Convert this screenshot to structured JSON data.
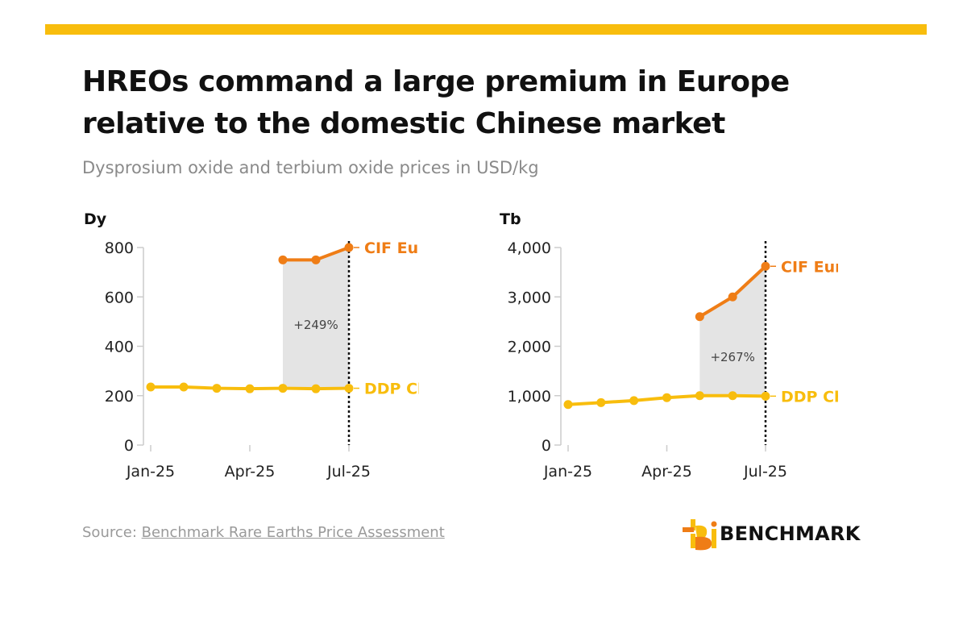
{
  "header": {
    "title_line1": "HREOs command a large premium in Europe",
    "title_line2": "relative to the domestic Chinese market",
    "subtitle": "Dysprosium oxide and terbium oxide prices in USD/kg"
  },
  "footer": {
    "source_prefix": "Source: ",
    "source_link": "Benchmark Rare Earths Price Assessment",
    "brand": "BENCHMARK"
  },
  "colors": {
    "accent_bar": "#f8bd0d",
    "cif_europe": "#ef7d16",
    "ddp_china": "#f8bd0d",
    "premium_fill": "#e4e4e4",
    "axis": "#cccccc",
    "muted_text": "#8a8a8a"
  },
  "chart_data": [
    {
      "type": "line",
      "title": "Dy",
      "x": [
        "Jan-25",
        "Feb-25",
        "Mar-25",
        "Apr-25",
        "May-25",
        "Jun-25",
        "Jul-25"
      ],
      "x_ticks": [
        "Jan-25",
        "Apr-25",
        "Jul-25"
      ],
      "ylim": [
        0,
        800
      ],
      "y_ticks": [
        "0",
        "200",
        "400",
        "600",
        "800"
      ],
      "y_tick_values": [
        0,
        200,
        400,
        600,
        800
      ],
      "series": [
        {
          "name": "CIF Europe",
          "x": [
            "May-25",
            "Jun-25",
            "Jul-25"
          ],
          "values": [
            750,
            750,
            800
          ]
        },
        {
          "name": "DDP China",
          "x": [
            "Jan-25",
            "Feb-25",
            "Mar-25",
            "Apr-25",
            "May-25",
            "Jun-25",
            "Jul-25"
          ],
          "values": [
            235,
            235,
            230,
            228,
            230,
            228,
            230
          ]
        }
      ],
      "annotation": "+249%",
      "grid": false,
      "legend": "line-end labels",
      "marker": "Jul-25"
    },
    {
      "type": "line",
      "title": "Tb",
      "x": [
        "Jan-25",
        "Feb-25",
        "Mar-25",
        "Apr-25",
        "May-25",
        "Jun-25",
        "Jul-25"
      ],
      "x_ticks": [
        "Jan-25",
        "Apr-25",
        "Jul-25"
      ],
      "ylim": [
        0,
        4000
      ],
      "y_ticks": [
        "0",
        "1,000",
        "2,000",
        "3,000",
        "4,000"
      ],
      "y_tick_values": [
        0,
        1000,
        2000,
        3000,
        4000
      ],
      "series": [
        {
          "name": "CIF Europe",
          "x": [
            "May-25",
            "Jun-25",
            "Jul-25"
          ],
          "values": [
            2600,
            3000,
            3620
          ]
        },
        {
          "name": "DDP China",
          "x": [
            "Jan-25",
            "Feb-25",
            "Mar-25",
            "Apr-25",
            "May-25",
            "Jun-25",
            "Jul-25"
          ],
          "values": [
            820,
            860,
            900,
            960,
            1000,
            1000,
            990
          ]
        }
      ],
      "annotation": "+267%",
      "grid": false,
      "legend": "line-end labels",
      "marker": "Jul-25"
    }
  ]
}
